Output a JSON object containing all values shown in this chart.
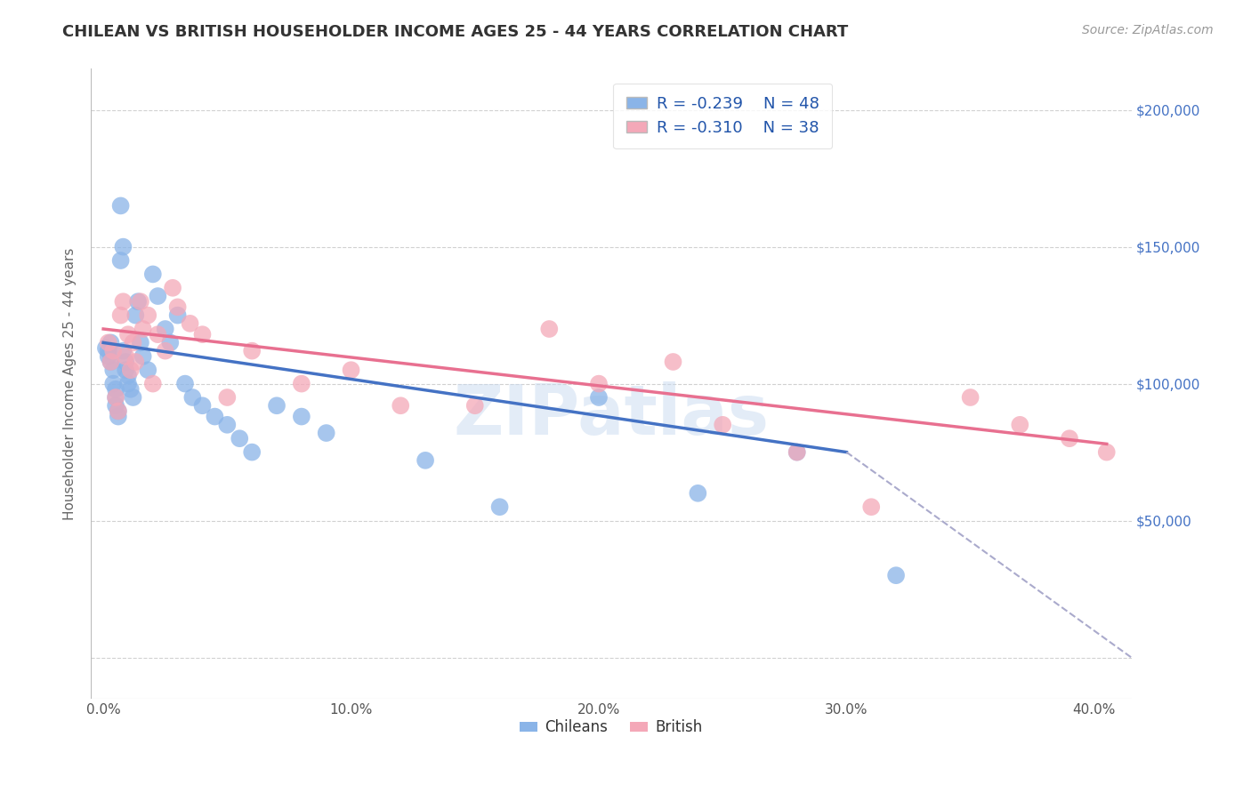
{
  "title": "CHILEAN VS BRITISH HOUSEHOLDER INCOME AGES 25 - 44 YEARS CORRELATION CHART",
  "source": "Source: ZipAtlas.com",
  "ylabel": "Householder Income Ages 25 - 44 years",
  "xlabel_ticks": [
    "0.0%",
    "10.0%",
    "20.0%",
    "30.0%",
    "40.0%"
  ],
  "xlabel_vals": [
    0.0,
    0.1,
    0.2,
    0.3,
    0.4
  ],
  "ytick_vals": [
    0,
    50000,
    100000,
    150000,
    200000
  ],
  "ytick_labels": [
    "",
    "$50,000",
    "$100,000",
    "$150,000",
    "$200,000"
  ],
  "xlim": [
    -0.005,
    0.415
  ],
  "ylim": [
    -15000,
    215000
  ],
  "chilean_color": "#8ab4e8",
  "british_color": "#f4a8b8",
  "chilean_line_color": "#4472c4",
  "british_line_color": "#e87090",
  "dashed_line_color": "#aaaacc",
  "legend_r_chilean": "R = -0.239",
  "legend_n_chilean": "N = 48",
  "legend_r_british": "R = -0.310",
  "legend_n_british": "N = 38",
  "watermark": "ZIPatlas",
  "chilean_x": [
    0.001,
    0.002,
    0.002,
    0.003,
    0.003,
    0.004,
    0.004,
    0.005,
    0.005,
    0.005,
    0.006,
    0.006,
    0.007,
    0.007,
    0.008,
    0.008,
    0.009,
    0.009,
    0.01,
    0.01,
    0.011,
    0.012,
    0.013,
    0.014,
    0.015,
    0.016,
    0.018,
    0.02,
    0.022,
    0.025,
    0.027,
    0.03,
    0.033,
    0.036,
    0.04,
    0.045,
    0.05,
    0.055,
    0.06,
    0.07,
    0.08,
    0.09,
    0.13,
    0.16,
    0.2,
    0.24,
    0.28,
    0.32
  ],
  "chilean_y": [
    113000,
    112000,
    110000,
    108000,
    115000,
    105000,
    100000,
    98000,
    95000,
    92000,
    90000,
    88000,
    145000,
    165000,
    150000,
    112000,
    108000,
    105000,
    103000,
    100000,
    98000,
    95000,
    125000,
    130000,
    115000,
    110000,
    105000,
    140000,
    132000,
    120000,
    115000,
    125000,
    100000,
    95000,
    92000,
    88000,
    85000,
    80000,
    75000,
    92000,
    88000,
    82000,
    72000,
    55000,
    95000,
    60000,
    75000,
    30000
  ],
  "british_x": [
    0.002,
    0.003,
    0.004,
    0.005,
    0.006,
    0.007,
    0.008,
    0.009,
    0.01,
    0.011,
    0.012,
    0.013,
    0.015,
    0.016,
    0.018,
    0.02,
    0.022,
    0.025,
    0.028,
    0.03,
    0.035,
    0.04,
    0.05,
    0.06,
    0.08,
    0.1,
    0.12,
    0.15,
    0.18,
    0.2,
    0.23,
    0.25,
    0.28,
    0.31,
    0.35,
    0.37,
    0.39,
    0.405
  ],
  "british_y": [
    115000,
    108000,
    112000,
    95000,
    90000,
    125000,
    130000,
    110000,
    118000,
    105000,
    115000,
    108000,
    130000,
    120000,
    125000,
    100000,
    118000,
    112000,
    135000,
    128000,
    122000,
    118000,
    95000,
    112000,
    100000,
    105000,
    92000,
    92000,
    120000,
    100000,
    108000,
    85000,
    75000,
    55000,
    95000,
    85000,
    80000,
    75000
  ],
  "chilean_line_x": [
    0.0,
    0.3
  ],
  "chilean_line_y": [
    115000,
    75000
  ],
  "british_line_x": [
    0.0,
    0.405
  ],
  "british_line_y": [
    120000,
    78000
  ],
  "dashed_line_x": [
    0.3,
    0.415
  ],
  "dashed_line_y": [
    75000,
    0
  ]
}
